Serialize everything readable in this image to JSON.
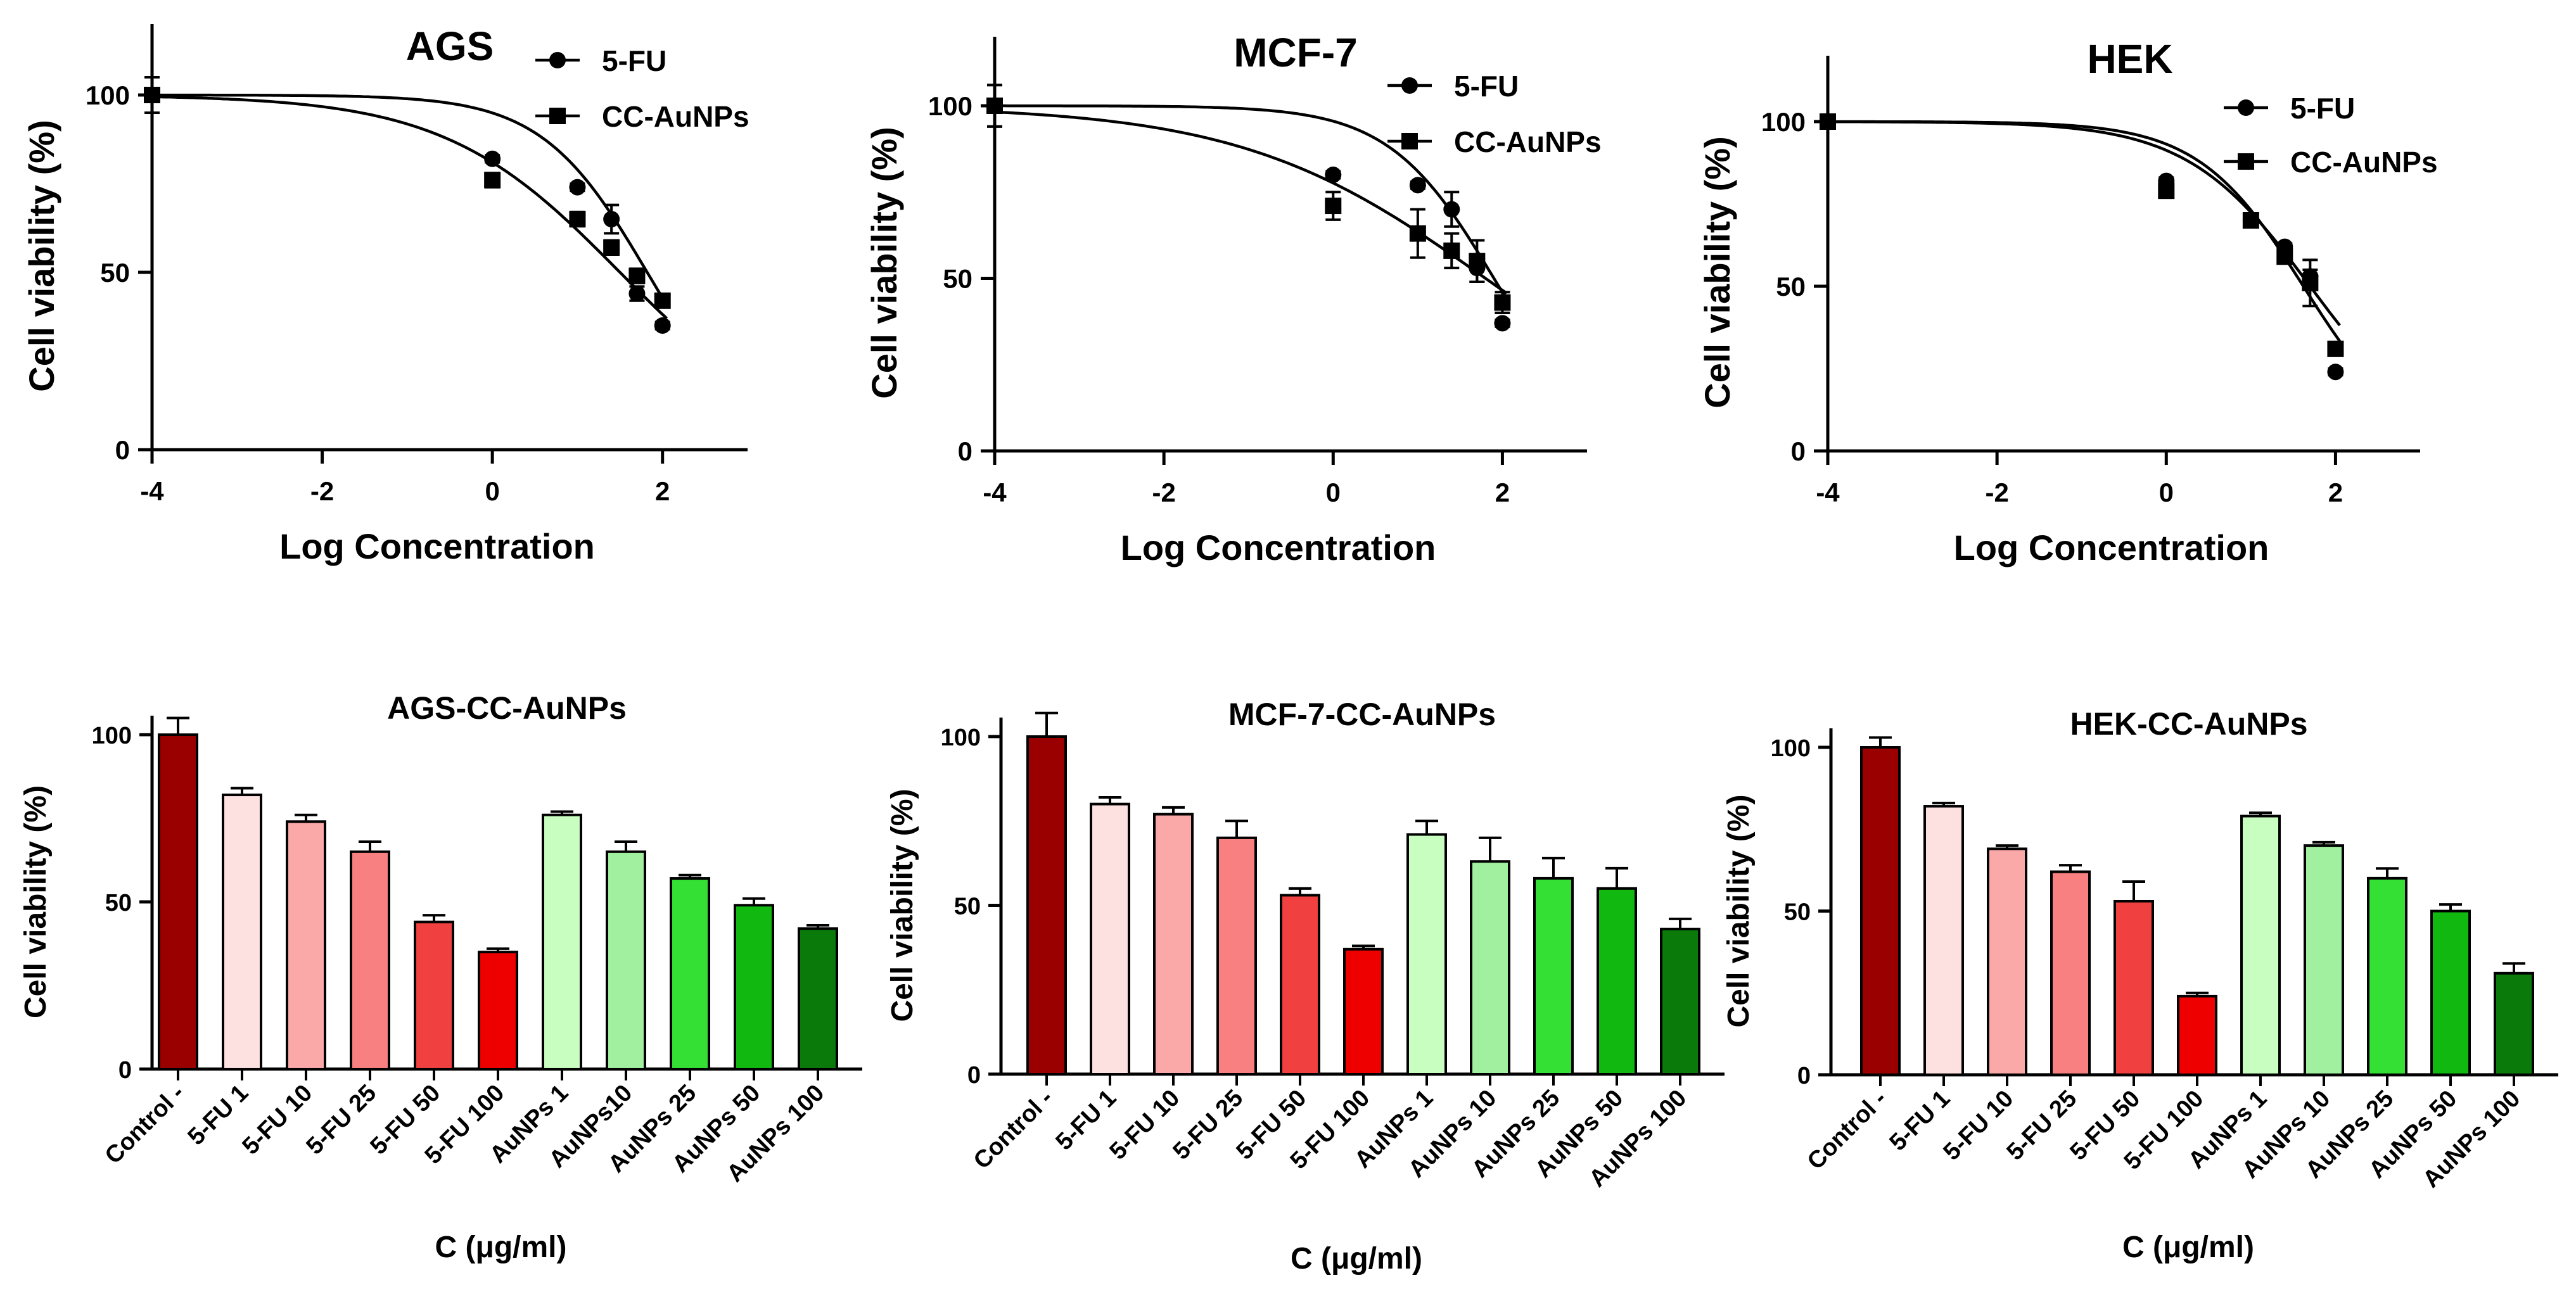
{
  "chart_data": [
    {
      "type": "scatter",
      "title": "AGS",
      "xlabel": "Log Concentration",
      "ylabel": "Cell viability (%)",
      "xlim": [
        -4,
        3
      ],
      "ylim": [
        0,
        120
      ],
      "xticks": [
        -4,
        -2,
        0,
        2
      ],
      "yticks": [
        0,
        50,
        100
      ],
      "x_tick_labels": [
        "-4",
        "-2",
        "0",
        "2"
      ],
      "y_tick_labels": [
        "0",
        "50",
        "100"
      ],
      "legend": "top-right",
      "series": [
        {
          "name": "5-FU",
          "marker": "circle",
          "x": [
            -4,
            0,
            1,
            1.4,
            1.7,
            2
          ],
          "y": [
            100,
            82,
            74,
            65,
            44,
            35
          ],
          "err": [
            5,
            1,
            1,
            4,
            2,
            1
          ],
          "fit": {
            "top": 100,
            "bottom": 0,
            "logIC50": 1.82,
            "hill": 0.7
          }
        },
        {
          "name": "CC-AuNPs",
          "marker": "square",
          "x": [
            -4,
            0,
            1,
            1.4,
            1.7,
            2
          ],
          "y": [
            100,
            76,
            65,
            57,
            49,
            42
          ],
          "err": [
            5,
            2,
            2,
            2,
            2,
            1
          ],
          "fit": {
            "top": 100,
            "bottom": 0,
            "logIC50": 1.5,
            "hill": 0.42
          }
        }
      ]
    },
    {
      "type": "scatter",
      "title": "MCF-7",
      "xlabel": "Log Concentration",
      "ylabel": "Cell viability (%)",
      "xlim": [
        -4,
        3
      ],
      "ylim": [
        0,
        120
      ],
      "xticks": [
        -4,
        -2,
        0,
        2
      ],
      "yticks": [
        0,
        50,
        100
      ],
      "x_tick_labels": [
        "-4",
        "-2",
        "0",
        "2"
      ],
      "y_tick_labels": [
        "0",
        "50",
        "100"
      ],
      "legend": "top-right",
      "series": [
        {
          "name": "5-FU",
          "marker": "circle",
          "x": [
            -4,
            0,
            1,
            1.4,
            1.7,
            2
          ],
          "y": [
            100,
            80,
            77,
            70,
            53,
            37
          ],
          "err": [
            6,
            1,
            1,
            5,
            4,
            1
          ],
          "fit": {
            "top": 100,
            "bottom": 0,
            "logIC50": 1.9,
            "hill": 0.7
          }
        },
        {
          "name": "CC-AuNPs",
          "marker": "square",
          "x": [
            -4,
            0,
            1,
            1.4,
            1.7,
            2
          ],
          "y": [
            100,
            71,
            63,
            58,
            55,
            43
          ],
          "err": [
            6,
            4,
            7,
            5,
            6,
            3
          ],
          "fit": {
            "top": 100,
            "bottom": 0,
            "logIC50": 1.8,
            "hill": 0.3
          }
        }
      ]
    },
    {
      "type": "scatter",
      "title": "HEK",
      "xlabel": "Log Concentration",
      "ylabel": "Cell viability (%)",
      "xlim": [
        -4,
        3
      ],
      "ylim": [
        0,
        120
      ],
      "xticks": [
        -4,
        -2,
        0,
        2
      ],
      "yticks": [
        0,
        50,
        100
      ],
      "x_tick_labels": [
        "-4",
        "-2",
        "0",
        "2"
      ],
      "y_tick_labels": [
        "0",
        "50",
        "100"
      ],
      "legend": "top-right",
      "series": [
        {
          "name": "5-FU",
          "marker": "circle",
          "x": [
            -4,
            0,
            1,
            1.4,
            1.7,
            2
          ],
          "y": [
            100,
            82,
            70,
            62,
            53,
            24
          ],
          "err": [
            2,
            1,
            1,
            1,
            2,
            1
          ],
          "fit": {
            "top": 100,
            "bottom": 0,
            "logIC50": 1.62,
            "hill": 0.7
          }
        },
        {
          "name": "CC-AuNPs",
          "marker": "square",
          "x": [
            -4,
            0,
            1,
            1.4,
            1.7,
            2
          ],
          "y": [
            100,
            79,
            70,
            59,
            51,
            31
          ],
          "err": [
            2,
            1,
            2,
            2,
            7,
            2
          ],
          "fit": {
            "top": 100,
            "bottom": 0,
            "logIC50": 1.7,
            "hill": 0.6
          }
        }
      ]
    },
    {
      "type": "bar",
      "title": "AGS-CC-AuNPs",
      "xlabel": "C (μg/ml)",
      "ylabel": "Cell viability (%)",
      "ylim": [
        0,
        100
      ],
      "yticks": [
        0,
        50,
        100
      ],
      "y_tick_labels": [
        "0",
        "50",
        "100"
      ],
      "categories": [
        "Control -",
        "5-FU 1",
        "5-FU 10",
        "5-FU 25",
        "5-FU 50",
        "5-FU 100",
        "AuNPs 1",
        "AuNPs10",
        "AuNPs 25",
        "AuNPs 50",
        "AuNPs 100"
      ],
      "values": [
        100,
        82,
        74,
        65,
        44,
        35,
        76,
        65,
        57,
        49,
        42
      ],
      "errors": [
        5,
        2,
        2,
        3,
        2,
        1,
        1,
        3,
        1,
        2,
        1
      ],
      "colors": [
        "#9b0000",
        "#fde0e0",
        "#fba8a8",
        "#f88080",
        "#f04040",
        "#ee0000",
        "#c8ffc0",
        "#a0f0a0",
        "#33e033",
        "#10b810",
        "#0a7a0a"
      ]
    },
    {
      "type": "bar",
      "title": "MCF-7-CC-AuNPs",
      "xlabel": "C (μg/ml)",
      "ylabel": "Cell viability (%)",
      "ylim": [
        0,
        100
      ],
      "yticks": [
        0,
        50,
        100
      ],
      "y_tick_labels": [
        "0",
        "50",
        "100"
      ],
      "categories": [
        "Control -",
        "5-FU 1",
        "5-FU 10",
        "5-FU 25",
        "5-FU 50",
        "5-FU 100",
        "AuNPs 1",
        "AuNPs 10",
        "AuNPs 25",
        "AuNPs 50",
        "AuNPs 100"
      ],
      "values": [
        100,
        80,
        77,
        70,
        53,
        37,
        71,
        63,
        58,
        55,
        43
      ],
      "errors": [
        7,
        2,
        2,
        5,
        2,
        1,
        4,
        7,
        6,
        6,
        3
      ],
      "colors": [
        "#9b0000",
        "#fde0e0",
        "#fba8a8",
        "#f88080",
        "#f04040",
        "#ee0000",
        "#c8ffc0",
        "#a0f0a0",
        "#33e033",
        "#10b810",
        "#0a7a0a"
      ]
    },
    {
      "type": "bar",
      "title": "HEK-CC-AuNPs",
      "xlabel": "C (μg/ml)",
      "ylabel": "Cell viability (%)",
      "ylim": [
        0,
        100
      ],
      "yticks": [
        0,
        50,
        100
      ],
      "y_tick_labels": [
        "0",
        "50",
        "100"
      ],
      "categories": [
        "Control -",
        "5-FU 1",
        "5-FU 10",
        "5-FU 25",
        "5-FU 50",
        "5-FU 100",
        "AuNPs 1",
        "AuNPs 10",
        "AuNPs 25",
        "AuNPs 50",
        "AuNPs 100"
      ],
      "values": [
        100,
        82,
        69,
        62,
        53,
        24,
        79,
        70,
        60,
        50,
        31
      ],
      "errors": [
        3,
        1,
        1,
        2,
        6,
        1,
        1,
        1,
        3,
        2,
        3
      ],
      "colors": [
        "#9b0000",
        "#fde0e0",
        "#fba8a8",
        "#f88080",
        "#f04040",
        "#ee0000",
        "#c8ffc0",
        "#a0f0a0",
        "#33e033",
        "#10b810",
        "#0a7a0a"
      ]
    }
  ]
}
